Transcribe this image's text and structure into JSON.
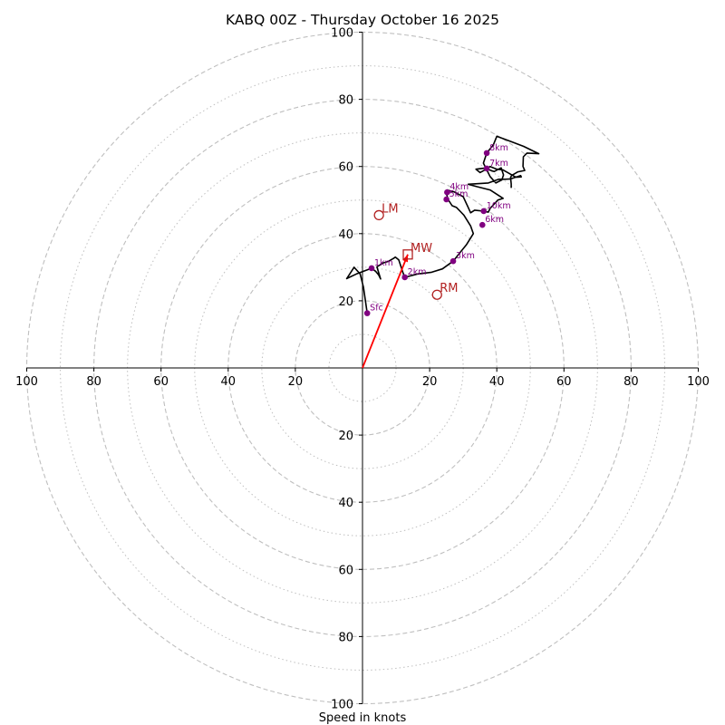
{
  "chart_data": {
    "type": "line",
    "title": "KABQ 00Z - Thursday October 16 2025",
    "xlabel": "Speed in knots",
    "ylabel": "",
    "xlim": [
      -100,
      100
    ],
    "ylim": [
      -100,
      100
    ],
    "ring_major": [
      20,
      40,
      60,
      80,
      100
    ],
    "ring_minor": [
      10,
      30,
      50,
      70,
      90
    ],
    "x_ticks": [
      {
        "value": -100,
        "label": "100"
      },
      {
        "value": -80,
        "label": "80"
      },
      {
        "value": -60,
        "label": "60"
      },
      {
        "value": -40,
        "label": "40"
      },
      {
        "value": -20,
        "label": "20"
      },
      {
        "value": 20,
        "label": "20"
      },
      {
        "value": 40,
        "label": "40"
      },
      {
        "value": 60,
        "label": "60"
      },
      {
        "value": 80,
        "label": "80"
      },
      {
        "value": 100,
        "label": "100"
      }
    ],
    "y_ticks": [
      {
        "value": 100,
        "label": "100"
      },
      {
        "value": 80,
        "label": "80"
      },
      {
        "value": 60,
        "label": "60"
      },
      {
        "value": 40,
        "label": "40"
      },
      {
        "value": 20,
        "label": "20"
      },
      {
        "value": -20,
        "label": "20"
      },
      {
        "value": -40,
        "label": "40"
      },
      {
        "value": -60,
        "label": "60"
      },
      {
        "value": -80,
        "label": "80"
      },
      {
        "value": -100,
        "label": "100"
      }
    ],
    "hodograph": {
      "color": "#000000",
      "points": [
        [
          1.4,
          16.3
        ],
        [
          0.3,
          24.0
        ],
        [
          -0.7,
          28.0
        ],
        [
          -2.5,
          30.0
        ],
        [
          -4.7,
          26.6
        ],
        [
          -1.8,
          28.0
        ],
        [
          2.7,
          29.7
        ],
        [
          3.9,
          28.8
        ],
        [
          4.8,
          27.7
        ],
        [
          5.4,
          26.5
        ],
        [
          4.3,
          30.1
        ],
        [
          6.0,
          31.2
        ],
        [
          7.8,
          31.8
        ],
        [
          9.2,
          32.6
        ],
        [
          9.8,
          33.0
        ],
        [
          10.8,
          32.2
        ],
        [
          12.0,
          28.5
        ],
        [
          12.6,
          27.0
        ],
        [
          16.4,
          28.0
        ],
        [
          20.6,
          28.5
        ],
        [
          23.8,
          29.5
        ],
        [
          27.0,
          31.8
        ],
        [
          31.0,
          36.8
        ],
        [
          33.0,
          40.0
        ],
        [
          32.2,
          42.3
        ],
        [
          30.2,
          45.5
        ],
        [
          28.0,
          47.8
        ],
        [
          26.7,
          48.3
        ],
        [
          26.0,
          49.4
        ],
        [
          25.3,
          50.5
        ],
        [
          25.2,
          51.2
        ],
        [
          24.9,
          52.1
        ],
        [
          25.1,
          52.5
        ],
        [
          25.2,
          53.0
        ],
        [
          27.4,
          52.4
        ],
        [
          30.0,
          51.0
        ],
        [
          31.4,
          48.0
        ],
        [
          32.2,
          46.2
        ],
        [
          33.4,
          47.0
        ],
        [
          36.1,
          46.7
        ],
        [
          36.9,
          46.5
        ],
        [
          37.5,
          46.4
        ],
        [
          38.0,
          47.5
        ],
        [
          40.3,
          50.0
        ],
        [
          41.9,
          50.5
        ],
        [
          38.0,
          53.0
        ],
        [
          34.0,
          54.0
        ],
        [
          31.5,
          54.7
        ],
        [
          37.5,
          55.1
        ],
        [
          40.6,
          56.2
        ],
        [
          42.4,
          56.2
        ],
        [
          44.1,
          56.3
        ],
        [
          47.1,
          57.3
        ],
        [
          47.3,
          56.9
        ],
        [
          45.7,
          56.8
        ],
        [
          41.8,
          59.0
        ],
        [
          40.0,
          59.2
        ],
        [
          38.0,
          60.0
        ],
        [
          36.5,
          59.0
        ],
        [
          35.0,
          58.2
        ],
        [
          33.8,
          59.2
        ],
        [
          36.3,
          59.5
        ],
        [
          39.2,
          58.5
        ],
        [
          41.3,
          59.6
        ],
        [
          42.0,
          57.5
        ],
        [
          41.5,
          56.0
        ],
        [
          39.7,
          55.1
        ],
        [
          38.0,
          57.0
        ],
        [
          36.0,
          61.0
        ],
        [
          37.0,
          64.0
        ],
        [
          39.0,
          66.5
        ],
        [
          40.0,
          69.0
        ],
        [
          44.0,
          67.5
        ],
        [
          48.0,
          66.0
        ],
        [
          52.5,
          63.8
        ],
        [
          49.0,
          64.0
        ],
        [
          47.9,
          62.9
        ],
        [
          47.8,
          60.0
        ],
        [
          48.3,
          58.8
        ],
        [
          46.3,
          58.4
        ],
        [
          44.4,
          57.3
        ],
        [
          44.1,
          56.7
        ],
        [
          44.3,
          54.8
        ],
        [
          44.3,
          53.6
        ]
      ]
    },
    "height_markers": [
      {
        "label": "Sfc",
        "u": 1.4,
        "v": 16.3
      },
      {
        "label": "1km",
        "u": 2.7,
        "v": 29.7
      },
      {
        "label": "2km",
        "u": 12.6,
        "v": 27.0
      },
      {
        "label": "3km",
        "u": 27.0,
        "v": 31.8
      },
      {
        "label": "4km",
        "u": 25.2,
        "v": 52.3
      },
      {
        "label": "5km",
        "u": 25.0,
        "v": 50.2
      },
      {
        "label": "6km",
        "u": 35.7,
        "v": 42.6
      },
      {
        "label": "7km",
        "u": 37.0,
        "v": 59.4
      },
      {
        "label": "8km",
        "u": 37.0,
        "v": 64.0
      },
      {
        "label": "10km",
        "u": 36.1,
        "v": 46.7
      }
    ],
    "storm_motion": [
      {
        "label": "LM",
        "u": 4.9,
        "v": 45.5,
        "marker": "circle"
      },
      {
        "label": "MW",
        "u": 13.5,
        "v": 33.8,
        "marker": "square"
      },
      {
        "label": "RM",
        "u": 22.2,
        "v": 21.8,
        "marker": "circle"
      }
    ],
    "mean_wind_arrow": {
      "from": [
        0,
        0
      ],
      "to": [
        13.5,
        33.8
      ],
      "color": "#ff0000"
    },
    "colors": {
      "ring": "#bfbfbf",
      "hodograph": "#000000",
      "heights": "#800080",
      "storm": "#b22222",
      "arrow": "#ff0000"
    }
  }
}
